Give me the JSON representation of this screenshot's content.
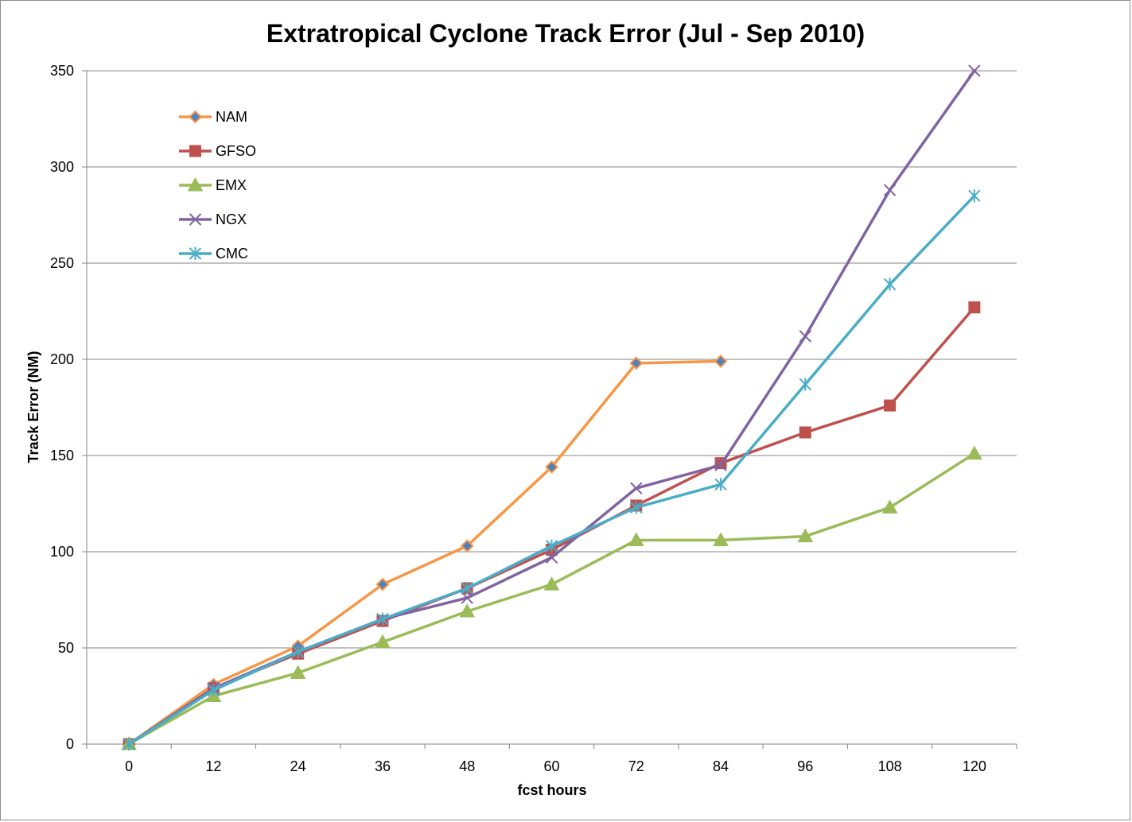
{
  "chart_data": {
    "type": "line",
    "title": "Extratropical Cyclone Track Error (Jul - Sep 2010)",
    "xlabel": "fcst hours",
    "ylabel": "Track Error  (NM)",
    "categories": [
      "0",
      "12",
      "24",
      "36",
      "48",
      "60",
      "72",
      "84",
      "96",
      "108",
      "120"
    ],
    "ylim": [
      0,
      350
    ],
    "yticks": [
      "0",
      "50",
      "100",
      "150",
      "200",
      "250",
      "300",
      "350"
    ],
    "grid": true,
    "legend_position": "top-left",
    "series": [
      {
        "name": "NAM",
        "color": "#F79646",
        "marker": "diamond",
        "values": [
          0,
          31,
          51,
          83,
          103,
          144,
          198,
          199,
          null,
          null,
          null
        ]
      },
      {
        "name": "GFSO",
        "color": "#C0504D",
        "marker": "square",
        "values": [
          0,
          29,
          47,
          64,
          81,
          101,
          124,
          146,
          162,
          176,
          227
        ]
      },
      {
        "name": "EMX",
        "color": "#9BBB59",
        "marker": "triangle",
        "values": [
          0,
          25,
          37,
          53,
          69,
          83,
          106,
          106,
          108,
          123,
          151
        ]
      },
      {
        "name": "NGX",
        "color": "#8064A2",
        "marker": "x",
        "values": [
          0,
          29,
          48,
          65,
          76,
          97,
          133,
          145,
          212,
          288,
          350
        ]
      },
      {
        "name": "CMC",
        "color": "#4BACC6",
        "marker": "star",
        "values": [
          0,
          28,
          48,
          65,
          81,
          103,
          123,
          135,
          187,
          239,
          285
        ]
      }
    ]
  }
}
